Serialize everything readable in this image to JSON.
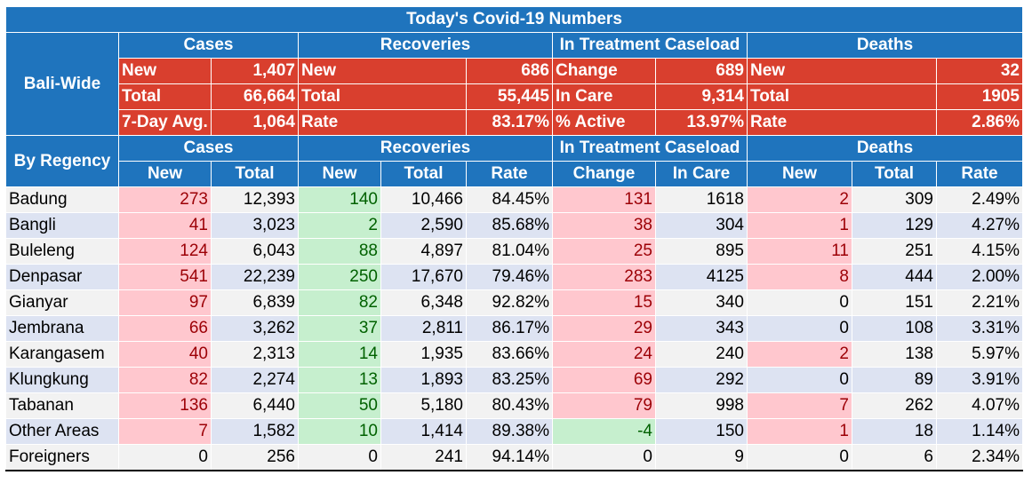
{
  "title": "Today's Covid-19 Numbers",
  "bali_wide": {
    "label": "Bali-Wide",
    "groups": [
      "Cases",
      "Recoveries",
      "In Treatment Caseload",
      "Deaths"
    ],
    "rows": [
      [
        [
          "New",
          "1,407"
        ],
        [
          "New",
          "686"
        ],
        [
          "Change",
          "689"
        ],
        [
          "New",
          "32"
        ]
      ],
      [
        [
          "Total",
          "66,664"
        ],
        [
          "Total",
          "55,445"
        ],
        [
          "In Care",
          "9,314"
        ],
        [
          "Total",
          "1905"
        ]
      ],
      [
        [
          "7-Day Avg.",
          "1,064"
        ],
        [
          "Rate",
          "83.17%"
        ],
        [
          "% Active",
          "13.97%"
        ],
        [
          "Rate",
          "2.86%"
        ]
      ]
    ]
  },
  "by_regency": {
    "label": "By Regency",
    "groups": [
      "Cases",
      "Recoveries",
      "In Treatment Caseload",
      "Deaths"
    ],
    "columns": [
      "New",
      "Total",
      "New",
      "Total",
      "Rate",
      "Change",
      "In Care",
      "New",
      "Total",
      "Rate"
    ],
    "rows": [
      {
        "name": "Badung",
        "values": [
          "273",
          "12,393",
          "140",
          "10,466",
          "84.45%",
          "131",
          "1618",
          "2",
          "309",
          "2.49%"
        ]
      },
      {
        "name": "Bangli",
        "values": [
          "41",
          "3,023",
          "2",
          "2,590",
          "85.68%",
          "38",
          "304",
          "1",
          "129",
          "4.27%"
        ]
      },
      {
        "name": "Buleleng",
        "values": [
          "124",
          "6,043",
          "88",
          "4,897",
          "81.04%",
          "25",
          "895",
          "11",
          "251",
          "4.15%"
        ]
      },
      {
        "name": "Denpasar",
        "values": [
          "541",
          "22,239",
          "250",
          "17,670",
          "79.46%",
          "283",
          "4125",
          "8",
          "444",
          "2.00%"
        ]
      },
      {
        "name": "Gianyar",
        "values": [
          "97",
          "6,839",
          "82",
          "6,348",
          "92.82%",
          "15",
          "340",
          "0",
          "151",
          "2.21%"
        ]
      },
      {
        "name": "Jembrana",
        "values": [
          "66",
          "3,262",
          "37",
          "2,811",
          "86.17%",
          "29",
          "343",
          "0",
          "108",
          "3.31%"
        ]
      },
      {
        "name": "Karangasem",
        "values": [
          "40",
          "2,313",
          "14",
          "1,935",
          "83.66%",
          "24",
          "240",
          "2",
          "138",
          "5.97%"
        ]
      },
      {
        "name": "Klungkung",
        "values": [
          "82",
          "2,274",
          "13",
          "1,893",
          "83.25%",
          "69",
          "292",
          "0",
          "89",
          "3.91%"
        ]
      },
      {
        "name": "Tabanan",
        "values": [
          "136",
          "6,440",
          "50",
          "5,180",
          "80.43%",
          "79",
          "998",
          "7",
          "262",
          "4.07%"
        ]
      },
      {
        "name": "Other Areas",
        "values": [
          "7",
          "1,582",
          "10",
          "1,414",
          "89.38%",
          "-4",
          "150",
          "1",
          "18",
          "1.14%"
        ]
      },
      {
        "name": "Foreigners",
        "values": [
          "0",
          "256",
          "0",
          "241",
          "94.14%",
          "0",
          "9",
          "0",
          "6",
          "2.34%"
        ]
      }
    ]
  },
  "colors": {
    "header_blue": "#1f74bd",
    "bali_red": "#d93f2e",
    "pink_bg": "#ffc7ce",
    "pink_text": "#9c0006",
    "green_bg": "#c6efce",
    "green_text": "#006100"
  }
}
